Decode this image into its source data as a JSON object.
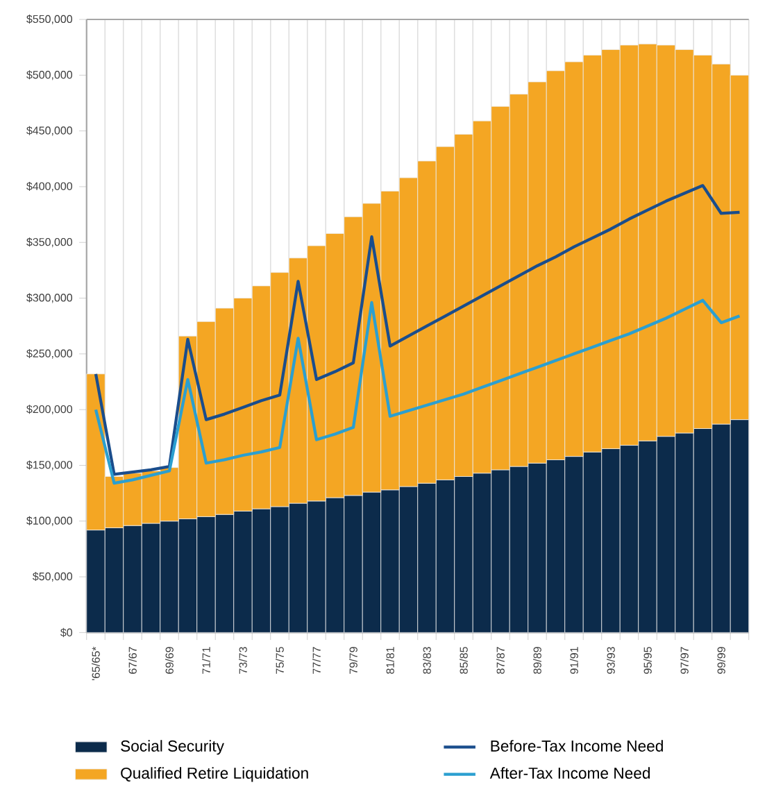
{
  "chart_data": {
    "type": "bar",
    "stacked": true,
    "grid": "x",
    "legend": "bottom",
    "categories": [
      "'65/65*",
      null,
      "67/67",
      null,
      "69/69",
      null,
      "71/71",
      null,
      "73/73",
      null,
      "75/75",
      null,
      "77/77",
      null,
      "79/79",
      null,
      "81/81",
      null,
      "83/83",
      null,
      "85/85",
      null,
      "87/87",
      null,
      "89/89",
      null,
      "91/91",
      null,
      "93/93",
      null,
      "95/95",
      null,
      "97/97",
      null,
      "99/99",
      null
    ],
    "ylim": [
      0,
      550000
    ],
    "yticks": [
      {
        "value": 0,
        "label": "$0"
      },
      {
        "value": 50000,
        "label": "$50,000"
      },
      {
        "value": 100000,
        "label": "$100,000"
      },
      {
        "value": 150000,
        "label": "$150,000"
      },
      {
        "value": 200000,
        "label": "$200,000"
      },
      {
        "value": 250000,
        "label": "$250,000"
      },
      {
        "value": 300000,
        "label": "$300,000"
      },
      {
        "value": 350000,
        "label": "$350,000"
      },
      {
        "value": 400000,
        "label": "$400,000"
      },
      {
        "value": 450000,
        "label": "$450,000"
      },
      {
        "value": 500000,
        "label": "$500,000"
      },
      {
        "value": 550000,
        "label": "$550,000"
      }
    ],
    "series": [
      {
        "name": "Social Security",
        "color": "#0c2b4b",
        "values": [
          92000,
          94000,
          96000,
          98000,
          100000,
          102000,
          104000,
          106000,
          109000,
          111000,
          113000,
          116000,
          118000,
          121000,
          123000,
          126000,
          128000,
          131000,
          134000,
          137000,
          140000,
          143000,
          146000,
          149000,
          152000,
          155000,
          158000,
          162000,
          165000,
          168000,
          172000,
          176000,
          179000,
          183000,
          187000,
          191000
        ]
      },
      {
        "name": "Qualified Retire Liquidation",
        "color": "#f4a623",
        "values": [
          140000,
          46000,
          47000,
          47000,
          48000,
          164000,
          175000,
          185000,
          191000,
          200000,
          210000,
          220000,
          229000,
          237000,
          250000,
          259000,
          268000,
          277000,
          289000,
          299000,
          307000,
          316000,
          326000,
          334000,
          342000,
          349000,
          354000,
          356000,
          358000,
          359000,
          356000,
          351000,
          344000,
          335000,
          323000,
          309000
        ]
      },
      {
        "name": "Before-Tax Income Need",
        "type": "line",
        "color": "#1a4d8c",
        "values": [
          232000,
          142000,
          144000,
          146000,
          149000,
          263000,
          191000,
          196000,
          202000,
          208000,
          213000,
          315000,
          227000,
          234000,
          242000,
          355000,
          257000,
          266000,
          275000,
          284000,
          293000,
          302000,
          311000,
          320000,
          329000,
          337000,
          346000,
          354000,
          362000,
          371000,
          379000,
          387000,
          394000,
          401000,
          376000,
          377000
        ]
      },
      {
        "name": "After-Tax Income Need",
        "type": "line",
        "color": "#2b9fd0",
        "values": [
          200000,
          134000,
          137000,
          141000,
          145000,
          227000,
          152000,
          155000,
          159000,
          162000,
          166000,
          264000,
          173000,
          178000,
          184000,
          296000,
          194000,
          199000,
          204000,
          209000,
          214000,
          220000,
          226000,
          232000,
          238000,
          244000,
          250000,
          256000,
          262000,
          268000,
          275000,
          282000,
          290000,
          298000,
          278000,
          284000
        ]
      }
    ]
  }
}
